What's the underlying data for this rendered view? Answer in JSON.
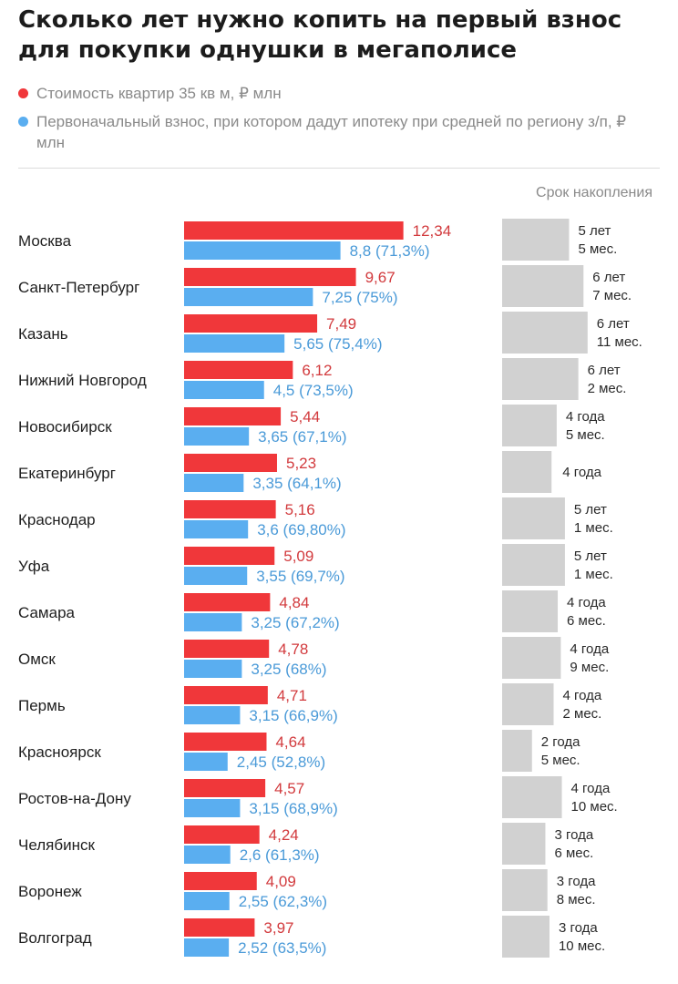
{
  "title": "Сколько лет нужно копить на первый взнос для покупки однушки в мегаполисе",
  "legend": [
    {
      "label": "Стоимость квартир 35 кв м, ₽ млн",
      "color": "#f0373a"
    },
    {
      "label": "Первоначальный взнос, при котором дадут ипотеку при средней по региону з/п, ₽ млн",
      "color": "#5aaef0"
    }
  ],
  "term_header": "Срок накопления",
  "colors": {
    "red": "#f0373a",
    "blue": "#5aaef0",
    "term": "#d1d1d1"
  },
  "chart_data": {
    "type": "bar",
    "categories": [
      "Москва",
      "Санкт-Петербург",
      "Казань",
      "Нижний Новгород",
      "Новосибирск",
      "Екатеринбург",
      "Краснодар",
      "Уфа",
      "Самара",
      "Омск",
      "Пермь",
      "Красноярск",
      "Ростов-на-Дону",
      "Челябинск",
      "Воронеж",
      "Волгоград"
    ],
    "series": [
      {
        "name": "Стоимость квартир 35 кв м, ₽ млн",
        "values": [
          12.34,
          9.67,
          7.49,
          6.12,
          5.44,
          5.23,
          5.16,
          5.09,
          4.84,
          4.78,
          4.71,
          4.64,
          4.57,
          4.24,
          4.09,
          3.97
        ],
        "labels": [
          "12,34",
          "9,67",
          "7,49",
          "6,12",
          "5,44",
          "5,23",
          "5,16",
          "5,09",
          "4,84",
          "4,78",
          "4,71",
          "4,64",
          "4,57",
          "4,24",
          "4,09",
          "3,97"
        ]
      },
      {
        "name": "Первоначальный взнос, при котором дадут ипотеку при средней по региону з/п, ₽ млн",
        "values": [
          8.8,
          7.25,
          5.65,
          4.5,
          3.65,
          3.35,
          3.6,
          3.55,
          3.25,
          3.25,
          3.15,
          2.45,
          3.15,
          2.6,
          2.55,
          2.52
        ],
        "labels": [
          "8,8 (71,3%)",
          "7,25 (75%)",
          "5,65 (75,4%)",
          "4,5 (73,5%)",
          "3,65 (67,1%)",
          "3,35 (64,1%)",
          "3,6 (69,80%)",
          "3,55 (69,7%)",
          "3,25 (67,2%)",
          "3,25 (68%)",
          "3,15 (66,9%)",
          "2,45 (52,8%)",
          "3,15 (68,9%)",
          "2,6 (61,3%)",
          "2,55 (62,3%)",
          "2,52 (63,5%)"
        ]
      },
      {
        "name": "Срок накопления",
        "months": [
          65,
          79,
          83,
          74,
          53,
          48,
          61,
          61,
          54,
          57,
          50,
          29,
          58,
          42,
          44,
          46
        ],
        "labels": [
          [
            "5 лет",
            "5 мес."
          ],
          [
            "6 лет",
            "7 мес."
          ],
          [
            "6 лет",
            "11 мес."
          ],
          [
            "6 лет",
            "2 мес."
          ],
          [
            "4 года",
            "5 мес."
          ],
          [
            "4 года"
          ],
          [
            "5 лет",
            "1 мес."
          ],
          [
            "5 лет",
            "1 мес."
          ],
          [
            "4 года",
            "6 мес."
          ],
          [
            "4 года",
            "9 мес."
          ],
          [
            "4 года",
            "2 мес."
          ],
          [
            "2 года",
            "5 мес."
          ],
          [
            "4 года",
            "10 мес."
          ],
          [
            "3 года",
            "6 мес."
          ],
          [
            "3 года",
            "8 мес."
          ],
          [
            "3 года",
            "10 мес."
          ]
        ]
      }
    ]
  }
}
